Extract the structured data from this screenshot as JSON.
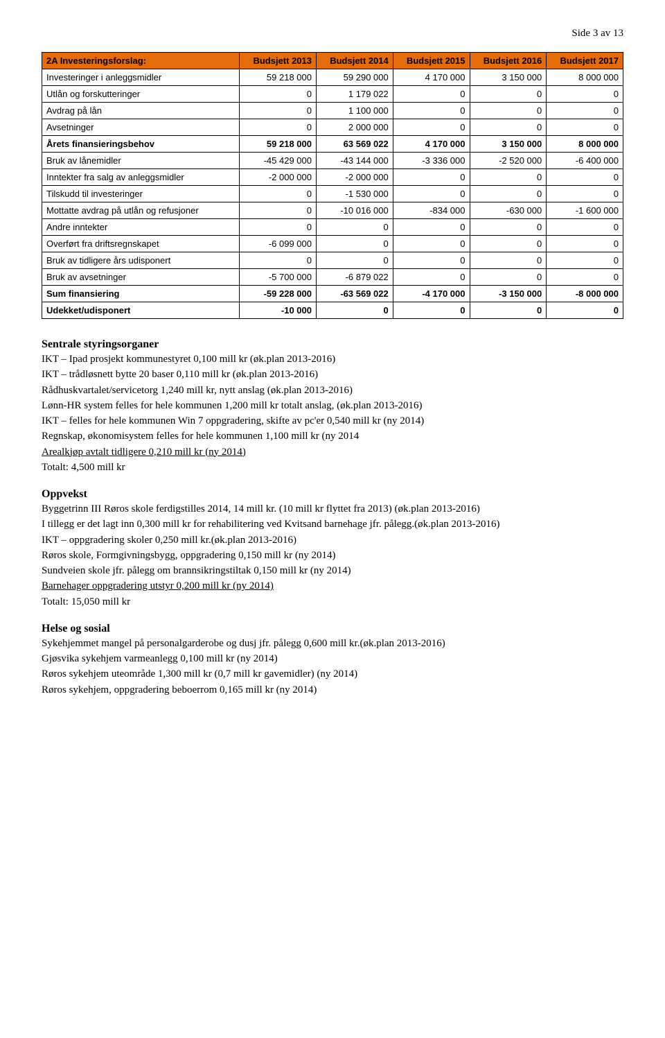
{
  "pageNum": "Side 3 av 13",
  "table": {
    "header_bg": "#e46c0a",
    "columns": [
      "2A Investeringsforslag:",
      "Budsjett 2013",
      "Budsjett 2014",
      "Budsjett 2015",
      "Budsjett 2016",
      "Budsjett 2017"
    ],
    "rows": [
      {
        "label": "Investeringer i anleggsmidler",
        "c": [
          "59 218 000",
          "59 290 000",
          "4 170 000",
          "3 150 000",
          "8 000 000"
        ],
        "bold": false
      },
      {
        "label": "Utlån og forskutteringer",
        "c": [
          "0",
          "1 179 022",
          "0",
          "0",
          "0"
        ],
        "bold": false
      },
      {
        "label": "Avdrag på lån",
        "c": [
          "0",
          "1 100 000",
          "0",
          "0",
          "0"
        ],
        "bold": false
      },
      {
        "label": "Avsetninger",
        "c": [
          "0",
          "2 000 000",
          "0",
          "0",
          "0"
        ],
        "bold": false
      },
      {
        "label": "Årets finansieringsbehov",
        "c": [
          "59 218 000",
          "63 569 022",
          "4 170 000",
          "3 150 000",
          "8 000 000"
        ],
        "bold": true
      },
      {
        "label": "Bruk av lånemidler",
        "c": [
          "-45 429 000",
          "-43 144 000",
          "-3 336 000",
          "-2 520 000",
          "-6 400 000"
        ],
        "bold": false
      },
      {
        "label": "Inntekter fra salg av anleggsmidler",
        "c": [
          "-2 000 000",
          "-2 000 000",
          "0",
          "0",
          "0"
        ],
        "bold": false
      },
      {
        "label": "Tilskudd til investeringer",
        "c": [
          "0",
          "-1 530 000",
          "0",
          "0",
          "0"
        ],
        "bold": false
      },
      {
        "label": "Mottatte avdrag på utlån og refusjoner",
        "c": [
          "0",
          "-10 016 000",
          "-834 000",
          "-630 000",
          "-1 600 000"
        ],
        "bold": false
      },
      {
        "label": "Andre inntekter",
        "c": [
          "0",
          "0",
          "0",
          "0",
          "0"
        ],
        "bold": false
      },
      {
        "label": "Overført fra driftsregnskapet",
        "c": [
          "-6 099 000",
          "0",
          "0",
          "0",
          "0"
        ],
        "bold": false
      },
      {
        "label": "Bruk av tidligere års udisponert",
        "c": [
          "0",
          "0",
          "0",
          "0",
          "0"
        ],
        "bold": false
      },
      {
        "label": "Bruk av avsetninger",
        "c": [
          "-5 700 000",
          "-6 879 022",
          "0",
          "0",
          "0"
        ],
        "bold": false
      },
      {
        "label": "Sum finansiering",
        "c": [
          "-59 228 000",
          "-63 569 022",
          "-4 170 000",
          "-3 150 000",
          "-8 000 000"
        ],
        "bold": true
      },
      {
        "label": "Udekket/udisponert",
        "c": [
          "-10 000",
          "0",
          "0",
          "0",
          "0"
        ],
        "bold": true
      }
    ]
  },
  "sections": {
    "sentrale": {
      "head": "Sentrale styringsorganer",
      "lines": [
        "IKT – Ipad prosjekt kommunestyret 0,100 mill kr (øk.plan 2013-2016)",
        "IKT – trådløsnett bytte 20 baser 0,110 mill kr (øk.plan 2013-2016)",
        "Rådhuskvartalet/servicetorg 1,240 mill kr, nytt anslag (øk.plan 2013-2016)",
        "Lønn-HR system felles for hele kommunen 1,200 mill kr  totalt anslag, (øk.plan 2013-2016)",
        "IKT – felles for hele kommunen Win 7 oppgradering, skifte av pc'er 0,540 mill kr (ny 2014)",
        "Regnskap, økonomisystem felles for hele kommunen 1,100 mill kr (ny 2014"
      ],
      "underline": "Arealkjøp avtalt tidligere 0,210 mill kr (ny 2014)",
      "total": "Totalt: 4,500 mill kr"
    },
    "oppvekst": {
      "head": "Oppvekst",
      "lines": [
        "Byggetrinn III Røros skole  ferdigstilles 2014, 14 mill kr. (10 mill kr flyttet fra 2013) (øk.plan 2013-2016)",
        "I tillegg er det lagt inn 0,300 mill kr for rehabilitering ved Kvitsand barnehage jfr. pålegg.(øk.plan 2013-2016)",
        "IKT – oppgradering skoler 0,250 mill kr.(øk.plan 2013-2016)",
        "Røros skole, Formgivningsbygg, oppgradering 0,150 mill kr (ny 2014)",
        "Sundveien skole jfr. pålegg om brannsikringstiltak 0,150 mill kr (ny 2014)"
      ],
      "underline": "Barnehager oppgradering utstyr 0,200 mill kr (ny 2014)",
      "total": "Totalt: 15,050 mill kr"
    },
    "helse": {
      "head": "Helse og sosial",
      "lines": [
        "Sykehjemmet mangel på personalgarderobe og dusj jfr. pålegg 0,600 mill kr.(øk.plan 2013-2016)",
        "Gjøsvika sykehjem varmeanlegg 0,100 mill kr (ny 2014)",
        "Røros sykehjem uteområde 1,300 mill kr (0,7 mill kr gavemidler) (ny 2014)",
        "Røros sykehjem, oppgradering beboerrom 0,165 mill kr (ny 2014)"
      ]
    }
  }
}
